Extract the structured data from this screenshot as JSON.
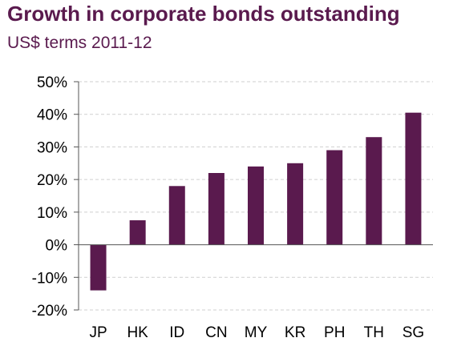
{
  "chart_data": {
    "type": "bar",
    "title": "Growth in corporate bonds outstanding",
    "subtitle": "US$ terms 2011-12",
    "xlabel": "",
    "ylabel": "",
    "categories": [
      "JP",
      "HK",
      "ID",
      "CN",
      "MY",
      "KR",
      "PH",
      "TH",
      "SG"
    ],
    "values": [
      -14,
      7.5,
      18,
      22,
      24,
      25,
      29,
      33,
      40.5
    ],
    "ylim": [
      -20,
      50
    ],
    "yticks": [
      -20,
      -10,
      0,
      10,
      20,
      30,
      40,
      50
    ],
    "ytick_labels": [
      "-20%",
      "-10%",
      "0%",
      "10%",
      "20%",
      "30%",
      "40%",
      "50%"
    ],
    "grid": true,
    "legend": "none",
    "bar_color": "#5a1a4e"
  }
}
